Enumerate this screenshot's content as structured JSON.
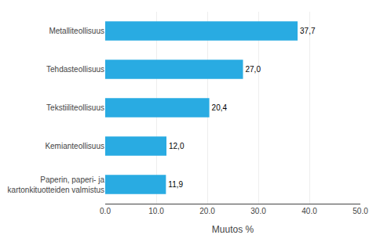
{
  "chart_data": {
    "type": "bar",
    "orientation": "horizontal",
    "categories": [
      "Paperin, paperi- ja kartonkituotteiden valmistus",
      "Kemianteollisuus",
      "Tekstiiliteollisuus",
      "Tehdasteollisuus",
      "Metalliteollisuus"
    ],
    "values": [
      11.9,
      12.0,
      20.4,
      27.0,
      37.7
    ],
    "value_labels": [
      "11,9",
      "12,0",
      "20,4",
      "27,0",
      "37,7"
    ],
    "data_labels": true,
    "color": "#29ABE2",
    "xlabel": "Muutos %",
    "xlim": [
      0,
      50
    ],
    "xticks": [
      {
        "value": 0,
        "label": "0.0"
      },
      {
        "value": 10,
        "label": "10.0"
      },
      {
        "value": 20,
        "label": "20.0"
      },
      {
        "value": 30,
        "label": "30.0"
      },
      {
        "value": 40,
        "label": "40.0"
      },
      {
        "value": 50,
        "label": "50.0"
      }
    ],
    "grid": true
  }
}
